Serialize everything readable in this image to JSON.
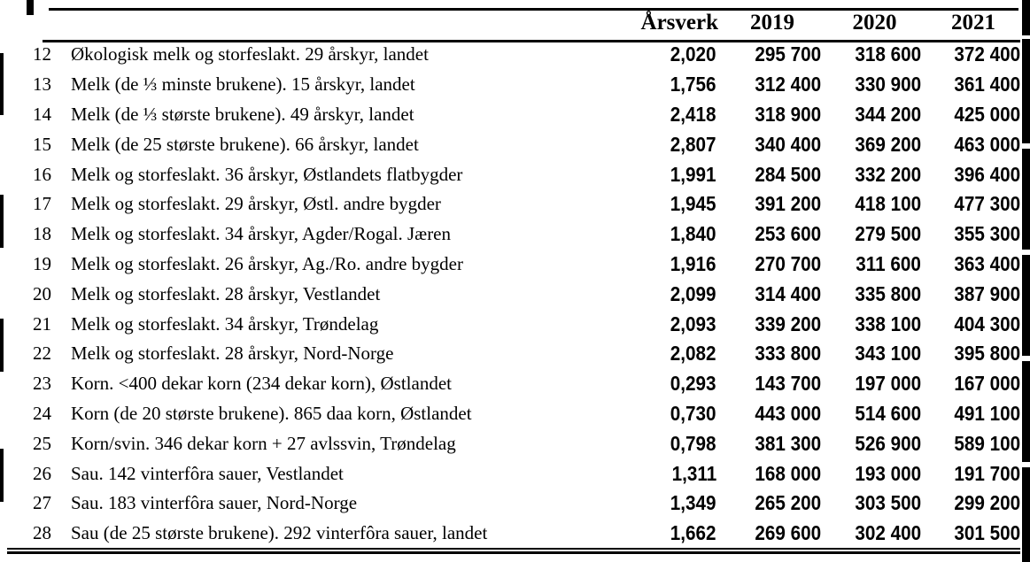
{
  "colors": {
    "background": "#ffffff",
    "text": "#000000",
    "rule": "#000000"
  },
  "table": {
    "headers": {
      "no": "",
      "desc": "",
      "arsverk": "Årsverk",
      "y2019": "2019",
      "y2020": "2020",
      "y2021": "2021"
    },
    "rows": [
      {
        "no": "12",
        "desc": "Økologisk melk og storfeslakt. 29 årskyr, landet",
        "arsverk": "2,020",
        "y2019": "295 700",
        "y2020": "318 600",
        "y2021": "372 400"
      },
      {
        "no": "13",
        "desc": "Melk (de ⅓ minste brukene). 15 årskyr, landet",
        "arsverk": "1,756",
        "y2019": "312 400",
        "y2020": "330 900",
        "y2021": "361 400"
      },
      {
        "no": "14",
        "desc": "Melk (de ⅓ største brukene). 49 årskyr, landet",
        "arsverk": "2,418",
        "y2019": "318 900",
        "y2020": "344 200",
        "y2021": "425 000"
      },
      {
        "no": "15",
        "desc": "Melk (de 25 største brukene). 66 årskyr, landet",
        "arsverk": "2,807",
        "y2019": "340 400",
        "y2020": "369 200",
        "y2021": "463 000"
      },
      {
        "no": "16",
        "desc": "Melk og storfeslakt. 36 årskyr, Østlandets flatbygder",
        "arsverk": "1,991",
        "y2019": "284 500",
        "y2020": "332 200",
        "y2021": "396 400"
      },
      {
        "no": "17",
        "desc": "Melk og storfeslakt. 29 årskyr, Østl. andre bygder",
        "arsverk": "1,945",
        "y2019": "391 200",
        "y2020": "418 100",
        "y2021": "477 300"
      },
      {
        "no": "18",
        "desc": "Melk og storfeslakt. 34 årskyr, Agder/Rogal. Jæren",
        "arsverk": "1,840",
        "y2019": "253 600",
        "y2020": "279 500",
        "y2021": "355 300"
      },
      {
        "no": "19",
        "desc": "Melk og storfeslakt. 26 årskyr, Ag./Ro. andre bygder",
        "arsverk": "1,916",
        "y2019": "270 700",
        "y2020": "311 600",
        "y2021": "363 400"
      },
      {
        "no": "20",
        "desc": "Melk og storfeslakt. 28 årskyr, Vestlandet",
        "arsverk": "2,099",
        "y2019": "314 400",
        "y2020": "335 800",
        "y2021": "387 900"
      },
      {
        "no": "21",
        "desc": "Melk og storfeslakt. 34 årskyr, Trøndelag",
        "arsverk": "2,093",
        "y2019": "339 200",
        "y2020": "338 100",
        "y2021": "404 300"
      },
      {
        "no": "22",
        "desc": "Melk og storfeslakt. 28 årskyr, Nord-Norge",
        "arsverk": "2,082",
        "y2019": "333 800",
        "y2020": "343 100",
        "y2021": "395 800"
      },
      {
        "no": "23",
        "desc": "Korn. <400 dekar korn (234 dekar korn), Østlandet",
        "arsverk": "0,293",
        "y2019": "143 700",
        "y2020": "197 000",
        "y2021": "167 000"
      },
      {
        "no": "24",
        "desc": "Korn (de 20 største brukene). 865 daa korn, Østlandet",
        "arsverk": "0,730",
        "y2019": "443 000",
        "y2020": "514 600",
        "y2021": "491 100"
      },
      {
        "no": "25",
        "desc": "Korn/svin. 346 dekar korn + 27 avlssvin, Trøndelag",
        "arsverk": "0,798",
        "y2019": "381 300",
        "y2020": "526 900",
        "y2021": "589 100"
      },
      {
        "no": "26",
        "desc": "Sau. 142 vinterfôra sauer, Vestlandet",
        "arsverk": "1,311",
        "y2019": "168 000",
        "y2020": "193 000",
        "y2021": "191 700"
      },
      {
        "no": "27",
        "desc": "Sau. 183 vinterfôra sauer, Nord-Norge",
        "arsverk": "1,349",
        "y2019": "265 200",
        "y2020": "303 500",
        "y2021": "299 200"
      },
      {
        "no": "28",
        "desc": "Sau (de 25 største brukene). 292 vinterfôra sauer, landet",
        "arsverk": "1,662",
        "y2019": "269 600",
        "y2020": "302 400",
        "y2021": "301 500"
      }
    ]
  }
}
